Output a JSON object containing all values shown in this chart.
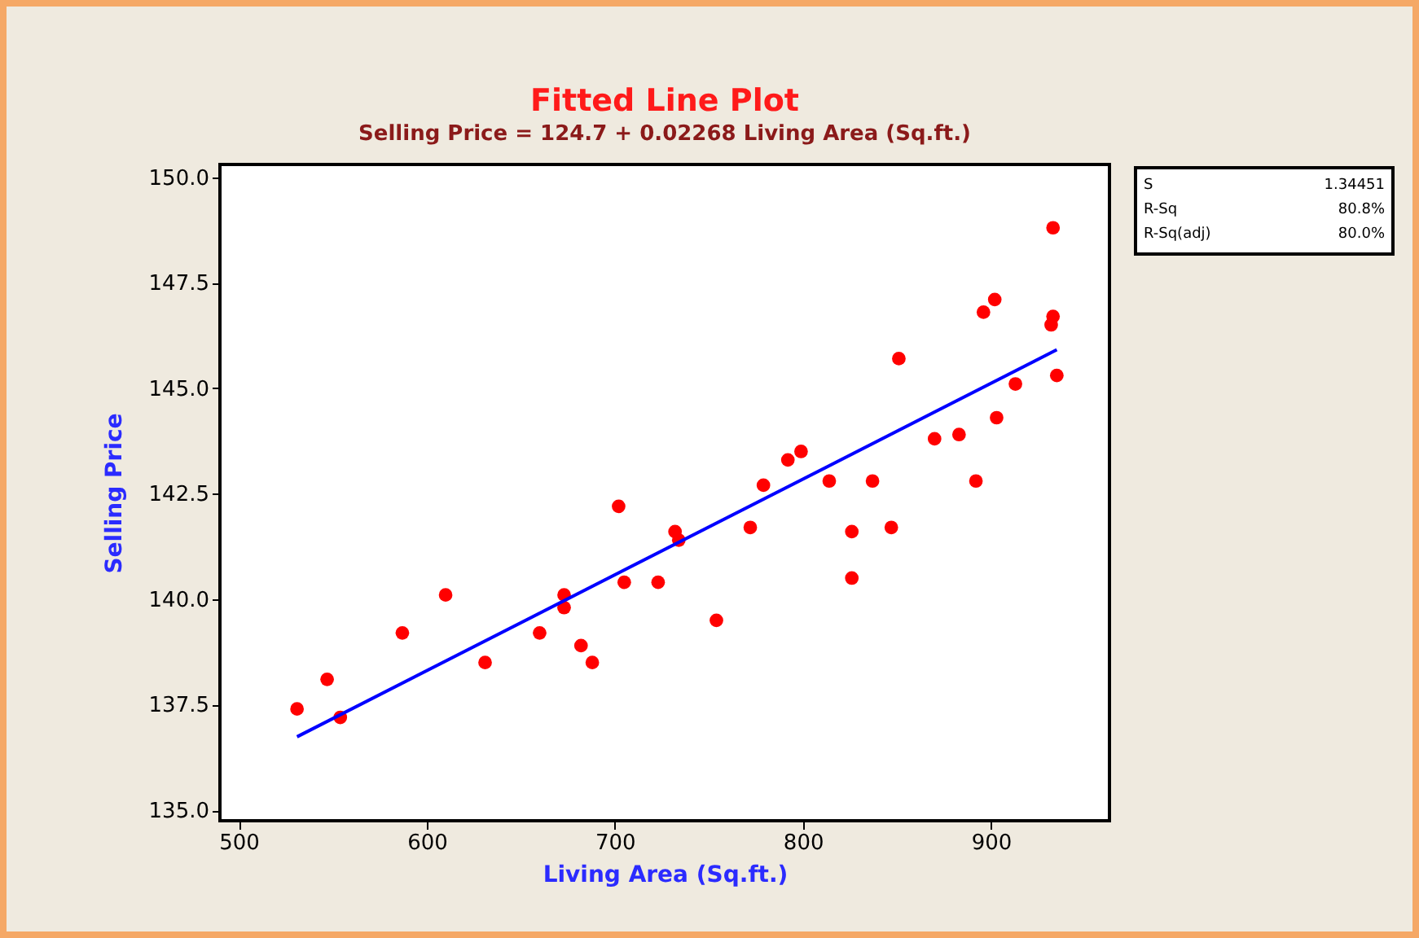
{
  "chart_data": {
    "type": "scatter",
    "title": "Fitted Line Plot",
    "subtitle": "Selling Price =  124.7 + 0.02268 Living Area (Sq.ft.)",
    "xlabel": "Living Area (Sq.ft.)",
    "ylabel": "Selling Price",
    "xlim": [
      490,
      963
    ],
    "ylim": [
      134.75,
      150.3
    ],
    "xticks": [
      500,
      600,
      700,
      800,
      900
    ],
    "yticks": [
      {
        "value": 135,
        "label": "135.0"
      },
      {
        "value": 137.5,
        "label": "137.5"
      },
      {
        "value": 140,
        "label": "140.0"
      },
      {
        "value": 142.5,
        "label": "142.5"
      },
      {
        "value": 145,
        "label": "145.0"
      },
      {
        "value": 147.5,
        "label": "147.5"
      },
      {
        "value": 150,
        "label": "150.0"
      }
    ],
    "grid": false,
    "marker": "circle",
    "annotations": [
      "S 1.34451",
      "R-Sq 80.8%",
      "R-Sq(adj) 80.0%"
    ],
    "series": [
      {
        "type": "scatter",
        "color": "#ff0000",
        "x": [
          531,
          547,
          554,
          587,
          610,
          631,
          660,
          673,
          673,
          682,
          688,
          702,
          705,
          723,
          732,
          734,
          754,
          772,
          779,
          792,
          799,
          814,
          826,
          826,
          837,
          847,
          851,
          870,
          883,
          892,
          896,
          902,
          903,
          913,
          932,
          933,
          933,
          935
        ],
        "values": [
          137.4,
          138.1,
          137.2,
          139.2,
          140.1,
          138.5,
          139.2,
          140.1,
          139.8,
          138.9,
          138.5,
          142.2,
          140.4,
          140.4,
          141.6,
          141.4,
          139.5,
          141.7,
          142.7,
          143.3,
          143.5,
          142.8,
          141.6,
          140.5,
          142.8,
          141.7,
          145.7,
          143.8,
          143.9,
          142.8,
          146.8,
          147.1,
          144.3,
          145.1,
          146.5,
          146.7,
          148.8,
          145.3
        ]
      },
      {
        "type": "line",
        "color": "#0000ff",
        "marker": "none",
        "x": [
          531,
          935
        ],
        "values": [
          136.74,
          145.91
        ]
      }
    ]
  }
}
